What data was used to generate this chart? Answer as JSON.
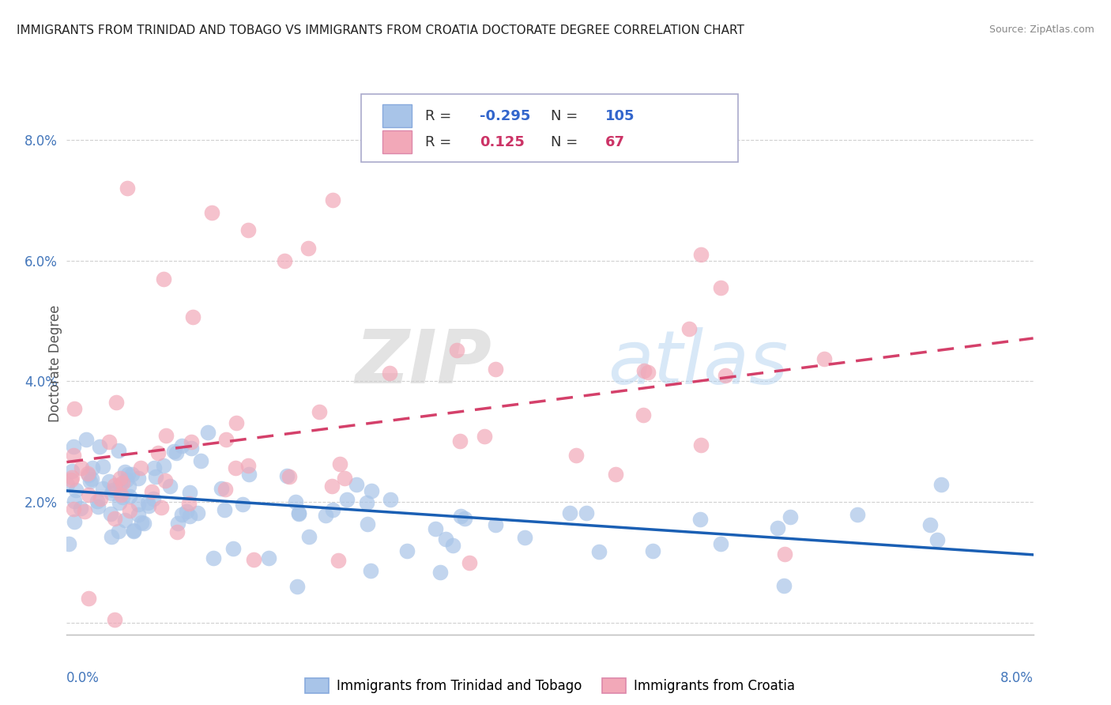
{
  "title": "IMMIGRANTS FROM TRINIDAD AND TOBAGO VS IMMIGRANTS FROM CROATIA DOCTORATE DEGREE CORRELATION CHART",
  "source": "Source: ZipAtlas.com",
  "ylabel": "Doctorate Degree",
  "xlim": [
    0.0,
    0.08
  ],
  "ylim": [
    -0.002,
    0.088
  ],
  "yticks": [
    0.0,
    0.02,
    0.04,
    0.06,
    0.08
  ],
  "ytick_labels": [
    "",
    "2.0%",
    "4.0%",
    "6.0%",
    "8.0%"
  ],
  "legend_blue_r": "-0.295",
  "legend_blue_n": "105",
  "legend_pink_r": "0.125",
  "legend_pink_n": "67",
  "blue_color": "#a8c4e8",
  "pink_color": "#f2a8b8",
  "blue_line_color": "#1a5fb4",
  "pink_line_color": "#d4406a",
  "watermark_zip": "ZIP",
  "watermark_atlas": "atlas",
  "background_color": "#ffffff",
  "grid_color": "#d0d0d0"
}
